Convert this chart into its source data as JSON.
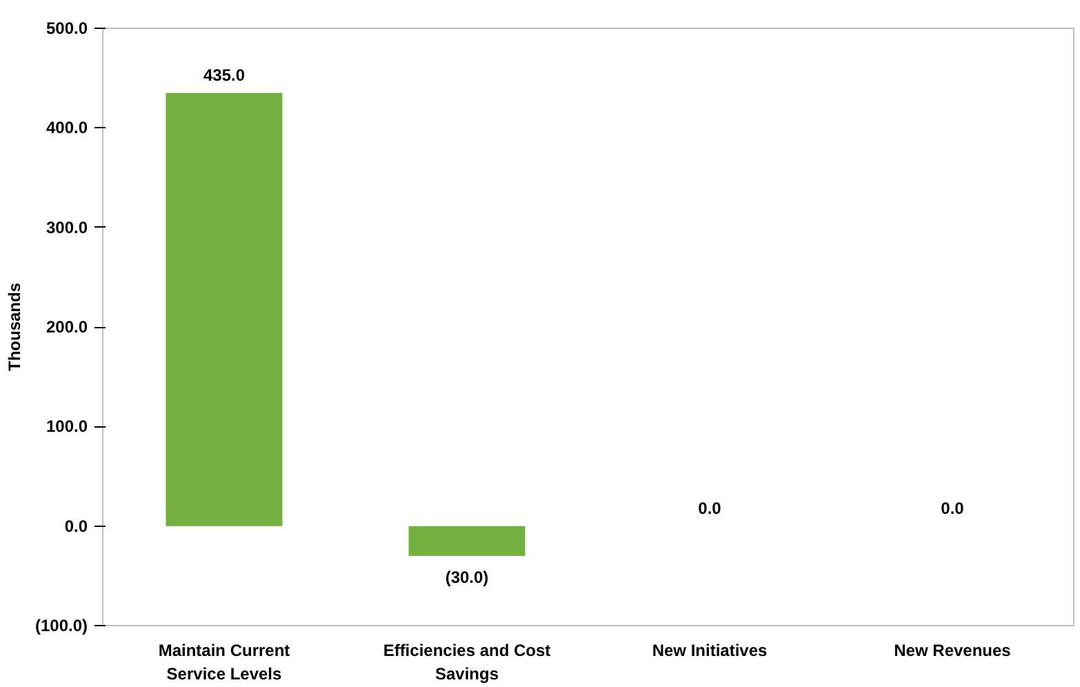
{
  "chart_data": {
    "type": "bar",
    "ylabel": "Thousands",
    "categories": [
      "Maintain Current Service Levels",
      "Efficiencies and Cost Savings",
      "New Initiatives",
      "New Revenues"
    ],
    "values": [
      435.0,
      -30.0,
      0.0,
      0.0
    ],
    "value_labels": [
      "435.0",
      "(30.0)",
      "0.0",
      "0.0"
    ],
    "color": "#76b041",
    "ylim": [
      -100,
      500
    ],
    "yticks": [
      {
        "value": -100,
        "label": "(100.0)"
      },
      {
        "value": 0,
        "label": "0.0"
      },
      {
        "value": 100,
        "label": "100.0"
      },
      {
        "value": 200,
        "label": "200.0"
      },
      {
        "value": 300,
        "label": "300.0"
      },
      {
        "value": 400,
        "label": "400.0"
      },
      {
        "value": 500,
        "label": "500.0"
      }
    ],
    "grid": false
  }
}
